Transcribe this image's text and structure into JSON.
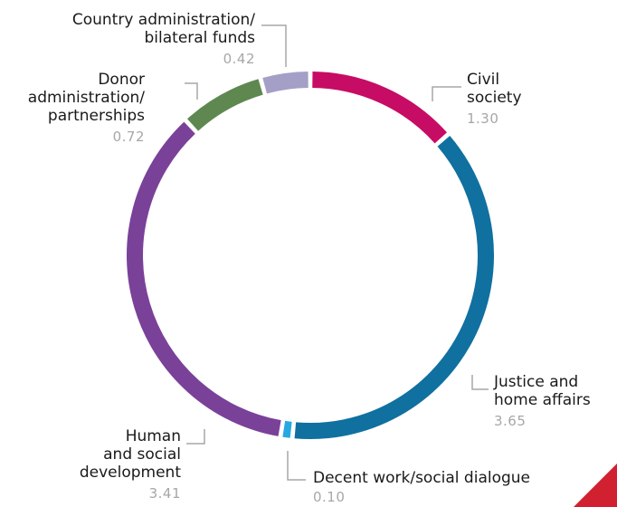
{
  "chart_data": {
    "type": "donut",
    "title": "",
    "total": 9.6,
    "slices": [
      {
        "name": "Civil society",
        "value": 1.3,
        "label": "1.30",
        "color": "#c70c65"
      },
      {
        "name": "Justice and home affairs",
        "value": 3.65,
        "label": "3.65",
        "color": "#1070a0"
      },
      {
        "name": "Decent work/social dialogue",
        "value": 0.1,
        "label": "0.10",
        "color": "#27a8e0"
      },
      {
        "name": "Human and social development",
        "value": 3.41,
        "label": "3.41",
        "color": "#7a4199"
      },
      {
        "name": "Donor administration/ partnerships",
        "value": 0.72,
        "label": "0.72",
        "color": "#5e8850"
      },
      {
        "name": "Country administration/ bilateral funds",
        "value": 0.42,
        "label": "0.42",
        "color": "#a49fc7"
      }
    ],
    "labels": {
      "civil": {
        "lines": [
          "Civil",
          "society"
        ]
      },
      "justice": {
        "lines": [
          "Justice and",
          "home affairs"
        ]
      },
      "decent": {
        "lines": [
          "Decent work/social dialogue"
        ]
      },
      "human": {
        "lines": [
          "Human",
          "and social",
          "development"
        ]
      },
      "donor": {
        "lines": [
          "Donor",
          "administration/",
          "partnerships"
        ]
      },
      "country": {
        "lines": [
          "Country administration/",
          "bilateral funds"
        ]
      }
    },
    "leader_color": "#a7a7a7",
    "accent_color": "#d1202f"
  }
}
